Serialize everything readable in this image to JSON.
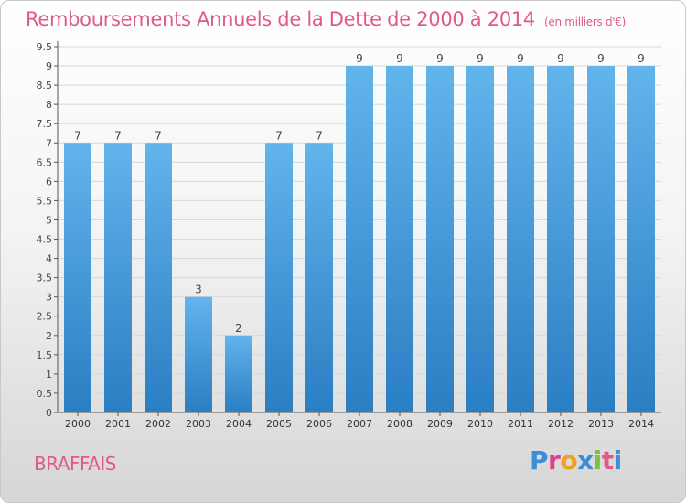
{
  "header": {
    "title": "Remboursements Annuels de la Dette de 2000 à 2014",
    "unit": "(en milliers d'€)"
  },
  "footer": {
    "commune": "BRAFFAIS",
    "logo_text": "Proxiti",
    "logo_colors": [
      "#3b8fd6",
      "#e0408a",
      "#f0a020",
      "#3b8fd6",
      "#7cc243",
      "#e05a86",
      "#3b8fd6"
    ]
  },
  "colors": {
    "bar_light": "#62b4ec",
    "bar_dark": "#2a7ec3",
    "axis": "#555555",
    "grid": "#d8d8d8"
  },
  "chart_data": {
    "type": "bar",
    "title": "Remboursements Annuels de la Dette de 2000 à 2014",
    "categories": [
      "2000",
      "2001",
      "2002",
      "2003",
      "2004",
      "2005",
      "2006",
      "2007",
      "2008",
      "2009",
      "2010",
      "2011",
      "2012",
      "2013",
      "2014"
    ],
    "values": [
      7,
      7,
      7,
      3,
      2,
      7,
      7,
      9,
      9,
      9,
      9,
      9,
      9,
      9,
      9
    ],
    "data_labels": [
      "7",
      "7",
      "7",
      "3",
      "2",
      "7",
      "7",
      "9",
      "9",
      "9",
      "9",
      "9",
      "9",
      "9",
      "9"
    ],
    "yticks": [
      "0",
      "0.5",
      "1",
      "1.5",
      "2",
      "2.5",
      "3",
      "3.5",
      "4",
      "4.5",
      "5",
      "5.5",
      "6",
      "6.5",
      "7",
      "7.5",
      "8",
      "8.5",
      "9",
      "9.5"
    ],
    "ylim": [
      0,
      9.5
    ],
    "grid": true
  }
}
